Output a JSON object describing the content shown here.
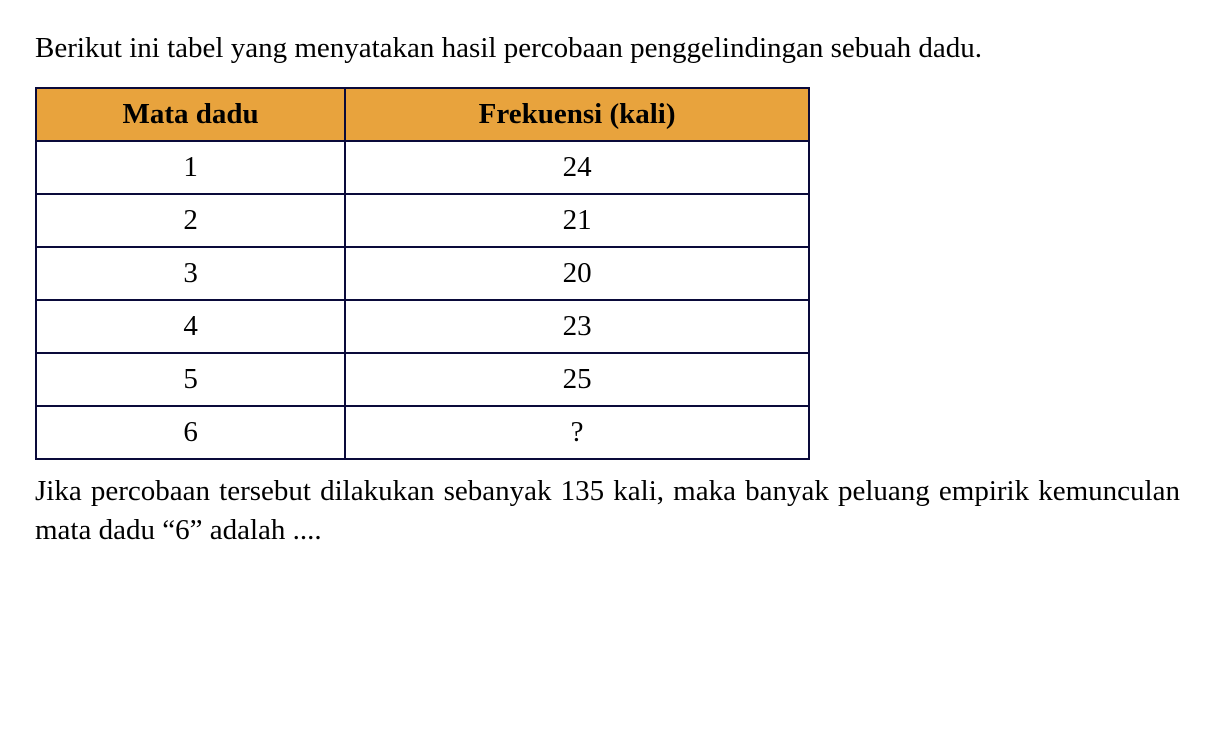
{
  "intro": "Berikut ini tabel yang menyatakan hasil percobaan penggelindingan sebuah dadu.",
  "table": {
    "headers": {
      "col1": "Mata dadu",
      "col2": "Frekuensi (kali)"
    },
    "rows": [
      {
        "mata": "1",
        "freq": "24"
      },
      {
        "mata": "2",
        "freq": "21"
      },
      {
        "mata": "3",
        "freq": "20"
      },
      {
        "mata": "4",
        "freq": "23"
      },
      {
        "mata": "5",
        "freq": "25"
      },
      {
        "mata": "6",
        "freq": "?"
      }
    ],
    "header_bg_color": "#e8a33d",
    "border_color": "#0a0a3a",
    "cell_fontsize": 29,
    "header_fontweight": "bold"
  },
  "outro": "Jika percobaan tersebut dilakukan sebanyak 135 kali, maka banyak peluang empirik kemunculan mata dadu “6” adalah ....",
  "background_color": "#ffffff",
  "text_color": "#000000",
  "font_family": "Times New Roman"
}
